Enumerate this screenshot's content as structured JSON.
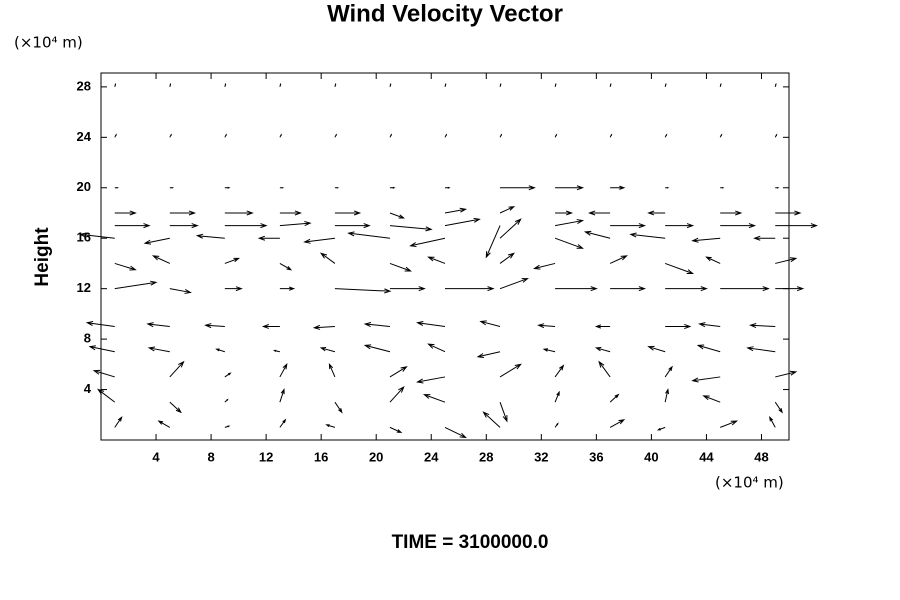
{
  "chart_data": {
    "type": "quiver",
    "title": "Wind Velocity Vector",
    "ylabel": "Height",
    "y_unit_label": "(×10⁴ m)",
    "x_unit_label": "(×10⁴ m)",
    "footer": "TIME = 3100000.0",
    "color": "#000000",
    "xlim": [
      0,
      50
    ],
    "ylim": [
      0,
      29.1
    ],
    "xticks": [
      4,
      8,
      12,
      16,
      20,
      24,
      28,
      32,
      36,
      40,
      44,
      48
    ],
    "yticks": [
      4,
      8,
      12,
      16,
      20,
      24,
      28
    ],
    "x": [
      1,
      5,
      9,
      13,
      17,
      21,
      25,
      29,
      33,
      37,
      41,
      45,
      49
    ],
    "y": [
      1,
      3,
      5,
      7,
      9,
      12,
      14,
      16,
      17,
      18,
      20,
      24,
      28
    ],
    "u": [
      [
        0.5,
        -0.8,
        0.3,
        0.4,
        -0.6,
        0.8,
        1.5,
        -1.2,
        0.2,
        1.0,
        -0.5,
        1.2,
        -0.4
      ],
      [
        -1.2,
        0.8,
        0.2,
        0.3,
        0.5,
        1.0,
        -1.5,
        0.5,
        0.3,
        0.6,
        0.2,
        -1.2,
        0.5
      ],
      [
        -1.5,
        1.0,
        0.4,
        0.5,
        -0.4,
        1.2,
        -2.0,
        1.5,
        0.6,
        -0.8,
        0.5,
        -2.0,
        1.5
      ],
      [
        -1.8,
        -1.5,
        -0.6,
        -0.4,
        -1.0,
        -1.8,
        -1.2,
        -1.6,
        -0.8,
        -1.0,
        -1.2,
        -1.6,
        -2.0
      ],
      [
        -2.0,
        -1.6,
        -1.4,
        -1.2,
        -1.5,
        -1.8,
        -2.0,
        -1.4,
        -1.2,
        -1.0,
        1.8,
        -1.5,
        -1.8
      ],
      [
        3.0,
        1.5,
        1.2,
        1.0,
        4.0,
        2.5,
        3.5,
        2.0,
        3.0,
        2.5,
        3.0,
        3.5,
        2.0
      ],
      [
        1.5,
        -1.2,
        1.0,
        0.8,
        -1.0,
        1.5,
        -1.2,
        1.0,
        -1.5,
        1.2,
        2.0,
        -1.0,
        1.5
      ],
      [
        -2.5,
        -1.8,
        -2.0,
        -1.5,
        -2.2,
        -3.0,
        -2.5,
        1.5,
        2.0,
        -1.8,
        -2.5,
        -2.0,
        -1.5
      ],
      [
        2.5,
        2.0,
        3.0,
        2.2,
        2.5,
        3.0,
        2.5,
        -1.0,
        2.0,
        2.5,
        2.0,
        2.5,
        3.0
      ],
      [
        1.5,
        1.8,
        2.0,
        1.5,
        1.8,
        1.0,
        1.5,
        1.0,
        1.2,
        -1.5,
        -1.2,
        1.5,
        1.8
      ],
      [
        0.2,
        0.2,
        0.3,
        0.2,
        0.2,
        0.3,
        0.3,
        2.5,
        2.0,
        1.0,
        0.2,
        0.2,
        0.2
      ],
      [
        0.1,
        0.1,
        0.1,
        0.1,
        0.1,
        0.1,
        0.1,
        0.1,
        0.1,
        0.1,
        0.1,
        0.1,
        0.1
      ],
      [
        0.05,
        0.05,
        0.05,
        0.05,
        0.05,
        0.05,
        0.05,
        0.05,
        0.05,
        0.05,
        0.05,
        0.05,
        0.05
      ]
    ],
    "v": [
      [
        0.8,
        0.5,
        0.1,
        0.6,
        0.2,
        -0.4,
        -0.8,
        1.2,
        0.3,
        0.6,
        -0.2,
        0.5,
        0.8
      ],
      [
        1.0,
        -0.8,
        0.2,
        1.0,
        -0.8,
        1.2,
        0.6,
        -1.5,
        0.8,
        0.6,
        1.0,
        0.5,
        -0.8
      ],
      [
        0.5,
        1.2,
        0.3,
        1.0,
        1.0,
        0.8,
        -0.4,
        1.0,
        0.9,
        1.2,
        0.8,
        -0.3,
        0.4
      ],
      [
        0.4,
        0.3,
        0.2,
        0.1,
        0.3,
        0.5,
        0.6,
        -0.4,
        0.2,
        0.3,
        0.4,
        0.5,
        0.3
      ],
      [
        0.3,
        0.2,
        0.1,
        0.0,
        -0.1,
        0.2,
        0.3,
        0.4,
        0.1,
        0.0,
        0.0,
        0.2,
        0.1
      ],
      [
        0.5,
        -0.3,
        0.0,
        0.0,
        -0.2,
        0.0,
        0.0,
        0.8,
        0.0,
        0.0,
        0.0,
        0.0,
        0.0
      ],
      [
        -0.5,
        0.6,
        0.4,
        -0.5,
        0.8,
        -0.6,
        0.5,
        0.8,
        -0.4,
        0.6,
        -0.8,
        0.5,
        0.4
      ],
      [
        0.3,
        -0.4,
        0.2,
        0.0,
        -0.3,
        0.4,
        -0.6,
        1.5,
        -0.8,
        0.5,
        0.3,
        -0.2,
        0.0
      ],
      [
        0.0,
        0.0,
        0.0,
        0.2,
        0.0,
        -0.3,
        0.5,
        -2.5,
        0.4,
        0.0,
        0.0,
        0.0,
        0.0
      ],
      [
        0.0,
        0.0,
        0.0,
        0.0,
        0.0,
        -0.4,
        0.3,
        0.5,
        0.0,
        0.0,
        0.0,
        0.0,
        0.0
      ],
      [
        0.0,
        0.0,
        0.0,
        0.0,
        0.0,
        0.0,
        0.0,
        0.0,
        0.0,
        0.0,
        0.0,
        0.0,
        0.0
      ],
      [
        0.2,
        0.2,
        0.2,
        0.2,
        0.2,
        0.2,
        0.2,
        0.2,
        0.2,
        0.2,
        0.2,
        0.2,
        0.2
      ],
      [
        0.2,
        0.2,
        0.2,
        0.2,
        0.2,
        0.2,
        0.2,
        0.2,
        0.2,
        0.2,
        0.2,
        0.2,
        0.2
      ]
    ]
  }
}
